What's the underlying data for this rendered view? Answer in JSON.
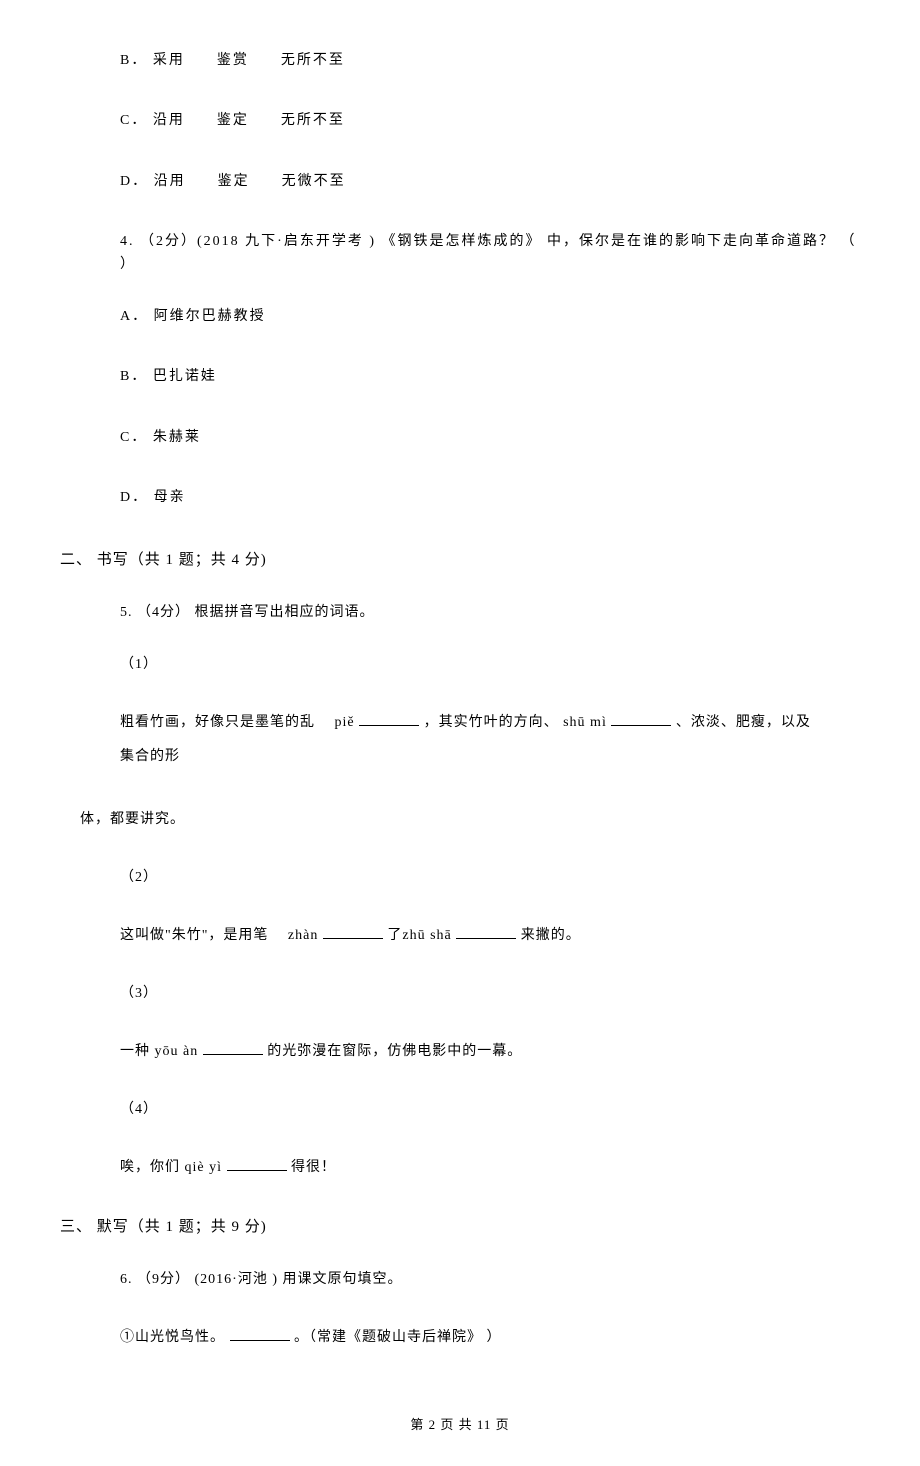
{
  "options_q3": {
    "b": "B．  采用　　鉴赏　　无所不至",
    "c": "C．  沿用　　鉴定　　无所不至",
    "d": "D．  沿用　　鉴定　　无微不至"
  },
  "q4": {
    "stem": "4. （2分）(2018 九下·启东开学考 ) 《钢铁是怎样炼成的》  中，保尔是在谁的影响下走向革命道路？  （       ）",
    "a": "A．  阿维尔巴赫教授",
    "b": "B．  巴扎诺娃",
    "c": "C．  朱赫莱",
    "d": "D．  母亲"
  },
  "section2": {
    "heading": "二、  书写（共 1 题；共 4 分)",
    "q5_stem": "5. （4分）  根据拼音写出相应的词语。",
    "sub1_num": "（1）",
    "sub1_text_a": "粗看竹画，好像只是墨笔的乱　  piě",
    "sub1_text_b": "，其实竹叶的方向、 shū mì",
    "sub1_text_c": "、浓淡、肥瘦，以及集合的形",
    "sub1_text_d": "体，都要讲究。",
    "sub2_num": "（2）",
    "sub2_text_a": "这叫做\"朱竹\"，是用笔　  zhàn",
    "sub2_text_b": "了zhū shā",
    "sub2_text_c": "来撇的。",
    "sub3_num": "（3）",
    "sub3_text_a": "一种 yōu àn",
    "sub3_text_b": "的光弥漫在窗际，仿佛电影中的一幕。",
    "sub4_num": "（4）",
    "sub4_text_a": "唉，你们 qiè yì",
    "sub4_text_b": "得很！"
  },
  "section3": {
    "heading": "三、  默写（共 1 题；共 9 分)",
    "q6_stem": "6. （9分）  (2016·河池 )  用课文原句填空。",
    "item1_a": "①山光悦鸟性。",
    "item1_b": "。（常建《题破山寺后禅院》  ）"
  },
  "footer": "第 2 页 共 11 页"
}
